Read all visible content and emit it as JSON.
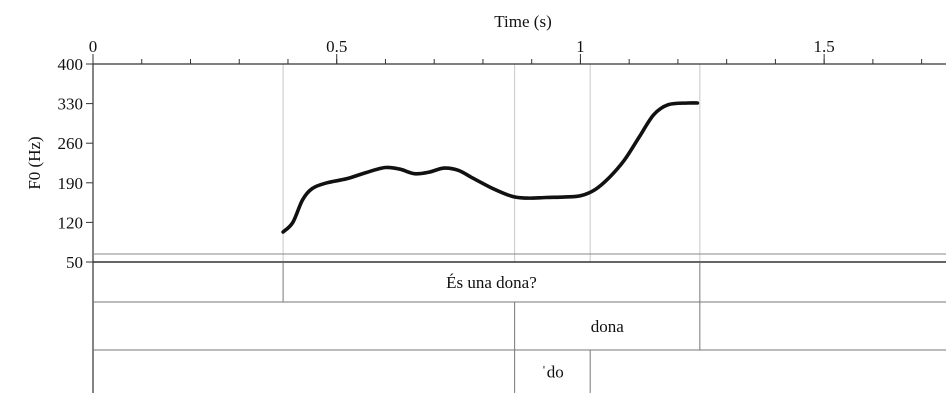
{
  "chart_data": {
    "type": "line",
    "title": "",
    "xlabel": "Time (s)",
    "ylabel": "F0 (Hz)",
    "xlim": [
      0,
      1.75
    ],
    "ylim": [
      50,
      400
    ],
    "x_ticks": [
      {
        "value": 0,
        "label": "0"
      },
      {
        "value": 0.5,
        "label": "0.5"
      },
      {
        "value": 1,
        "label": "1"
      },
      {
        "value": 1.5,
        "label": "1.5"
      }
    ],
    "x_minor_step": 0.1,
    "x_axis_position": "top",
    "y_ticks": [
      {
        "value": 400,
        "label": "400"
      },
      {
        "value": 330,
        "label": "330"
      },
      {
        "value": 260,
        "label": "260"
      },
      {
        "value": 190,
        "label": "190"
      },
      {
        "value": 120,
        "label": "120"
      },
      {
        "value": 50,
        "label": "50"
      }
    ],
    "grid": false,
    "series": [
      {
        "color": "#111111",
        "x": [
          0.39,
          0.41,
          0.43,
          0.45,
          0.48,
          0.52,
          0.56,
          0.6,
          0.63,
          0.66,
          0.69,
          0.72,
          0.75,
          0.78,
          0.82,
          0.86,
          0.89,
          0.93,
          0.97,
          1.0,
          1.03,
          1.06,
          1.09,
          1.12,
          1.15,
          1.18,
          1.22,
          1.24
        ],
        "y": [
          103,
          120,
          160,
          180,
          190,
          197,
          208,
          217,
          214,
          206,
          209,
          216,
          212,
          198,
          180,
          166,
          163,
          164,
          165,
          167,
          178,
          200,
          230,
          270,
          310,
          328,
          331,
          331
        ]
      }
    ],
    "boundaries": [
      0.39,
      0.865,
      1.02,
      1.245
    ],
    "annotation_tiers": [
      {
        "intervals": [
          {
            "start": 0.39,
            "end": 1.245,
            "label": "És una dona?"
          }
        ],
        "boundaries": [
          0.39,
          1.245
        ]
      },
      {
        "intervals": [
          {
            "start": 0.865,
            "end": 1.245,
            "label": "dona"
          }
        ],
        "boundaries": [
          0.865,
          1.245
        ]
      },
      {
        "intervals": [
          {
            "start": 0.865,
            "end": 1.02,
            "label": "ˈdo"
          }
        ],
        "boundaries": [
          0.865,
          1.02
        ]
      }
    ]
  }
}
